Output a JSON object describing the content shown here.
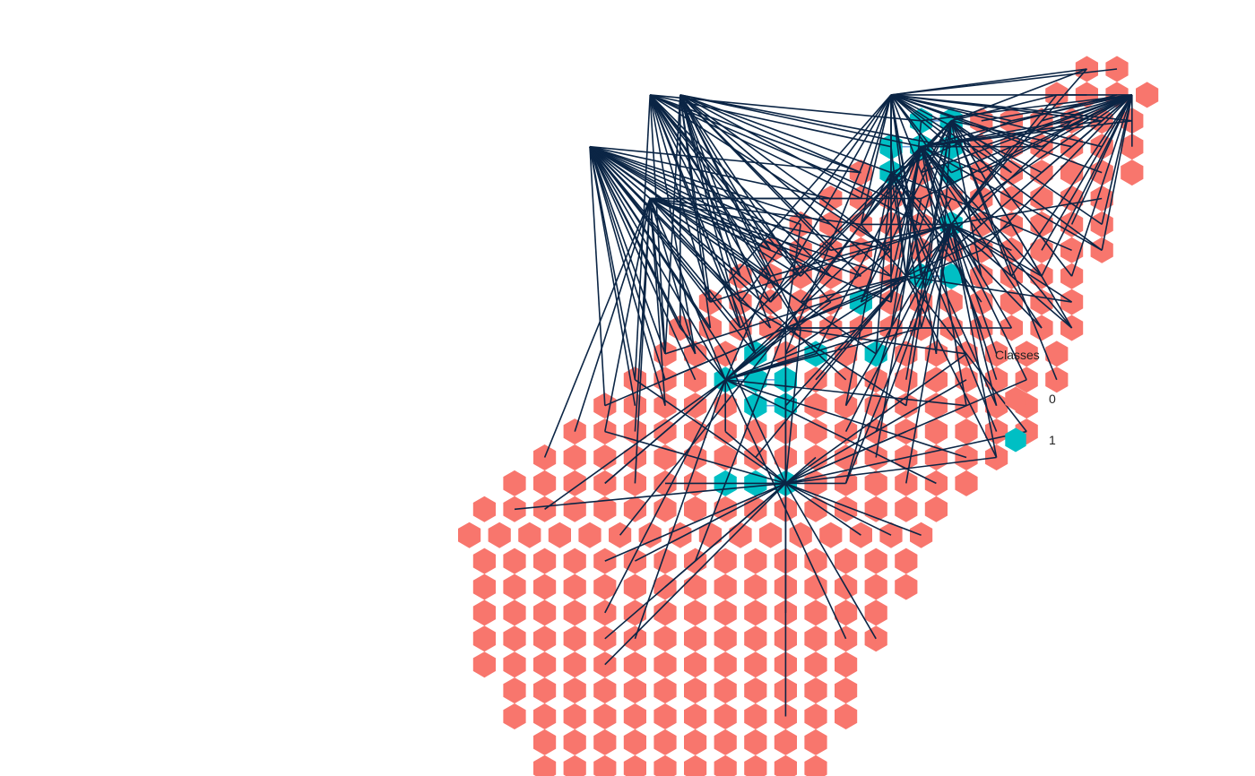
{
  "chart_data": {
    "type": "scatter",
    "grid": false,
    "axes": "none",
    "marker": "hexagon",
    "colors": {
      "0": "#F8766D",
      "1": "#00BFC4",
      "link_major": "#0B2545",
      "link_minor": "#6CA0DC"
    },
    "legend": {
      "title": "Classes",
      "placement": "right",
      "entries": [
        {
          "label": "0",
          "color": "#F8766D"
        },
        {
          "label": "1",
          "color": "#00BFC4"
        }
      ]
    },
    "row_spans": [
      [
        28,
        31
      ],
      [
        26,
        32
      ],
      [
        17,
        31
      ],
      [
        15,
        31
      ],
      [
        13,
        31
      ],
      [
        11,
        30
      ],
      [
        9,
        30
      ],
      [
        7,
        29
      ],
      [
        5,
        28
      ],
      [
        3,
        28
      ],
      [
        1,
        28
      ],
      [
        0,
        26
      ],
      [
        -2,
        26
      ],
      [
        -4,
        24
      ],
      [
        -6,
        24
      ],
      [
        -8,
        22
      ],
      [
        -10,
        20
      ],
      [
        -12,
        19
      ],
      [
        -13,
        18
      ],
      [
        -12,
        17
      ],
      [
        -12,
        16
      ],
      [
        -12,
        15
      ],
      [
        -12,
        14
      ],
      [
        -12,
        12
      ],
      [
        -10,
        13
      ],
      [
        -10,
        13
      ],
      [
        -8,
        10
      ],
      [
        -8,
        10
      ]
    ],
    "class1_points": [
      [
        3,
        17
      ],
      [
        4,
        16
      ],
      [
        6,
        16
      ],
      [
        8,
        16
      ],
      [
        6,
        13
      ],
      [
        8,
        13
      ],
      [
        4,
        12
      ],
      [
        6,
        12
      ],
      [
        8,
        12
      ],
      [
        6,
        11
      ],
      [
        10,
        11
      ],
      [
        14,
        11
      ],
      [
        8,
        10
      ],
      [
        18,
        10
      ],
      [
        13,
        9
      ],
      [
        18,
        9
      ],
      [
        16,
        8
      ],
      [
        17,
        8
      ],
      [
        19,
        8
      ],
      [
        16,
        7
      ],
      [
        18,
        7
      ],
      [
        19,
        6
      ],
      [
        -1,
        5
      ],
      [
        -3,
        4
      ],
      [
        1,
        4
      ],
      [
        15,
        4
      ],
      [
        19,
        4
      ],
      [
        -5,
        3
      ],
      [
        -3,
        3
      ],
      [
        -1,
        3
      ],
      [
        13,
        3
      ],
      [
        15,
        3
      ],
      [
        17,
        3
      ],
      [
        19,
        3
      ],
      [
        -3,
        2
      ],
      [
        -1,
        2
      ],
      [
        1,
        2
      ],
      [
        13,
        2
      ],
      [
        15,
        2
      ],
      [
        17,
        2
      ],
      [
        19,
        2
      ],
      [
        -1,
        1
      ],
      [
        1,
        1
      ],
      [
        15,
        1
      ],
      [
        31,
        1
      ]
    ],
    "hubs": [
      {
        "x": 31,
        "y": 1,
        "links": 26
      },
      {
        "x": 8,
        "y": 16,
        "links": 26
      },
      {
        "x": 16,
        "y": 8,
        "links": 22
      },
      {
        "x": 19,
        "y": 6,
        "links": 26
      },
      {
        "x": 4,
        "y": 12,
        "links": 18
      },
      {
        "x": 8,
        "y": 10,
        "links": 14
      },
      {
        "x": 15,
        "y": 4,
        "links": 10
      },
      {
        "x": -5,
        "y": 3,
        "links": 30
      },
      {
        "x": -1,
        "y": 5,
        "links": 22
      },
      {
        "x": 17,
        "y": 3,
        "links": 24
      },
      {
        "x": 19,
        "y": 2,
        "links": 20
      },
      {
        "x": 1,
        "y": 1,
        "links": 22
      },
      {
        "x": -1,
        "y": 1,
        "links": 20
      },
      {
        "x": 15,
        "y": 1,
        "links": 28
      }
    ]
  }
}
